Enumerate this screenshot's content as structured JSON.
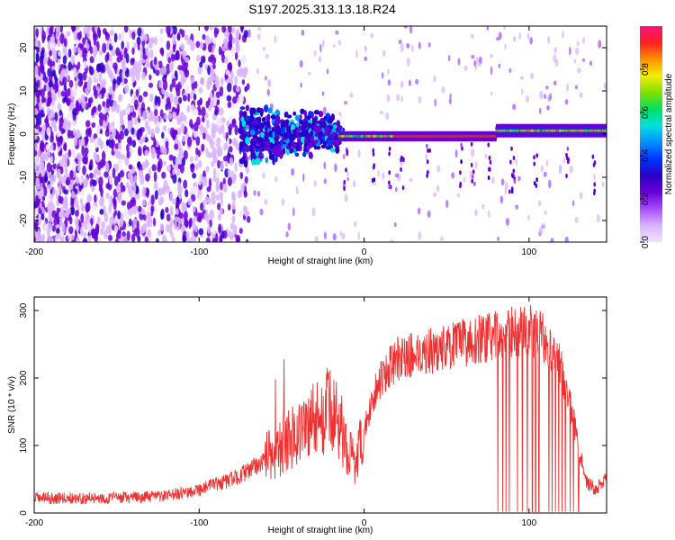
{
  "title": "S197.2025.313.13.18.R24",
  "chart_data": [
    {
      "type": "heatmap",
      "xlabel": "Height of straight line (km)",
      "ylabel": "Frequency (Hz)",
      "xlim": [
        -200,
        147
      ],
      "ylim": [
        -25,
        25
      ],
      "xticks": [
        -200,
        -100,
        0,
        100
      ],
      "yticks": [
        -20,
        -10,
        0,
        10,
        20
      ],
      "colorbar": {
        "label": "Normalized spectral amplitude",
        "range": [
          0,
          1
        ],
        "ticks": [
          0.0,
          0.2,
          0.4,
          0.6,
          0.8
        ],
        "colors": [
          "#f0e6fa",
          "#d9b3ff",
          "#a64dff",
          "#6a00d8",
          "#2a00c8",
          "#0033ff",
          "#0090ff",
          "#00e0e0",
          "#00e060",
          "#80e000",
          "#f0f000",
          "#ff9000",
          "#ff2020",
          "#ff1080"
        ]
      },
      "features": [
        {
          "x_range": [
            -200,
            -75
          ],
          "description_level": 0.3,
          "freq_spread": 25
        },
        {
          "x_range": [
            -75,
            -15
          ],
          "level": 0.45,
          "freq_center": 0,
          "freq_spread": 4
        },
        {
          "x_range": [
            -15,
            80
          ],
          "level": 0.9,
          "freq_center": -0.5,
          "freq_spread": 1
        },
        {
          "x_range": [
            80,
            147
          ],
          "level": 0.75,
          "freq_center": 0.8,
          "freq_spread": 1.2
        }
      ]
    },
    {
      "type": "line",
      "xlabel": "Height of straight line (km)",
      "ylabel": "SNR (10 * v/v)",
      "xlim": [
        -200,
        147
      ],
      "ylim": [
        0,
        320
      ],
      "xticks": [
        -200,
        -100,
        0,
        100
      ],
      "yticks": [
        0,
        100,
        200,
        300
      ],
      "color": "#f03030",
      "series": [
        {
          "name": "SNR",
          "x": [
            -200,
            -180,
            -160,
            -140,
            -120,
            -110,
            -100,
            -90,
            -80,
            -70,
            -60,
            -50,
            -40,
            -30,
            -20,
            -15,
            -10,
            -5,
            0,
            5,
            10,
            20,
            30,
            40,
            50,
            60,
            70,
            80,
            90,
            100,
            110,
            115,
            120,
            125,
            130,
            135,
            140,
            147
          ],
          "y": [
            22,
            22,
            22,
            23,
            25,
            30,
            35,
            42,
            50,
            62,
            80,
            100,
            120,
            140,
            150,
            130,
            100,
            70,
            120,
            170,
            200,
            228,
            235,
            240,
            245,
            252,
            258,
            262,
            268,
            272,
            258,
            240,
            210,
            160,
            100,
            45,
            35,
            50
          ]
        }
      ],
      "dropouts_x": [
        81,
        84,
        86,
        88,
        93,
        96,
        99,
        102,
        104,
        106,
        112,
        114,
        116,
        118,
        120,
        122,
        125,
        127,
        130
      ]
    }
  ]
}
